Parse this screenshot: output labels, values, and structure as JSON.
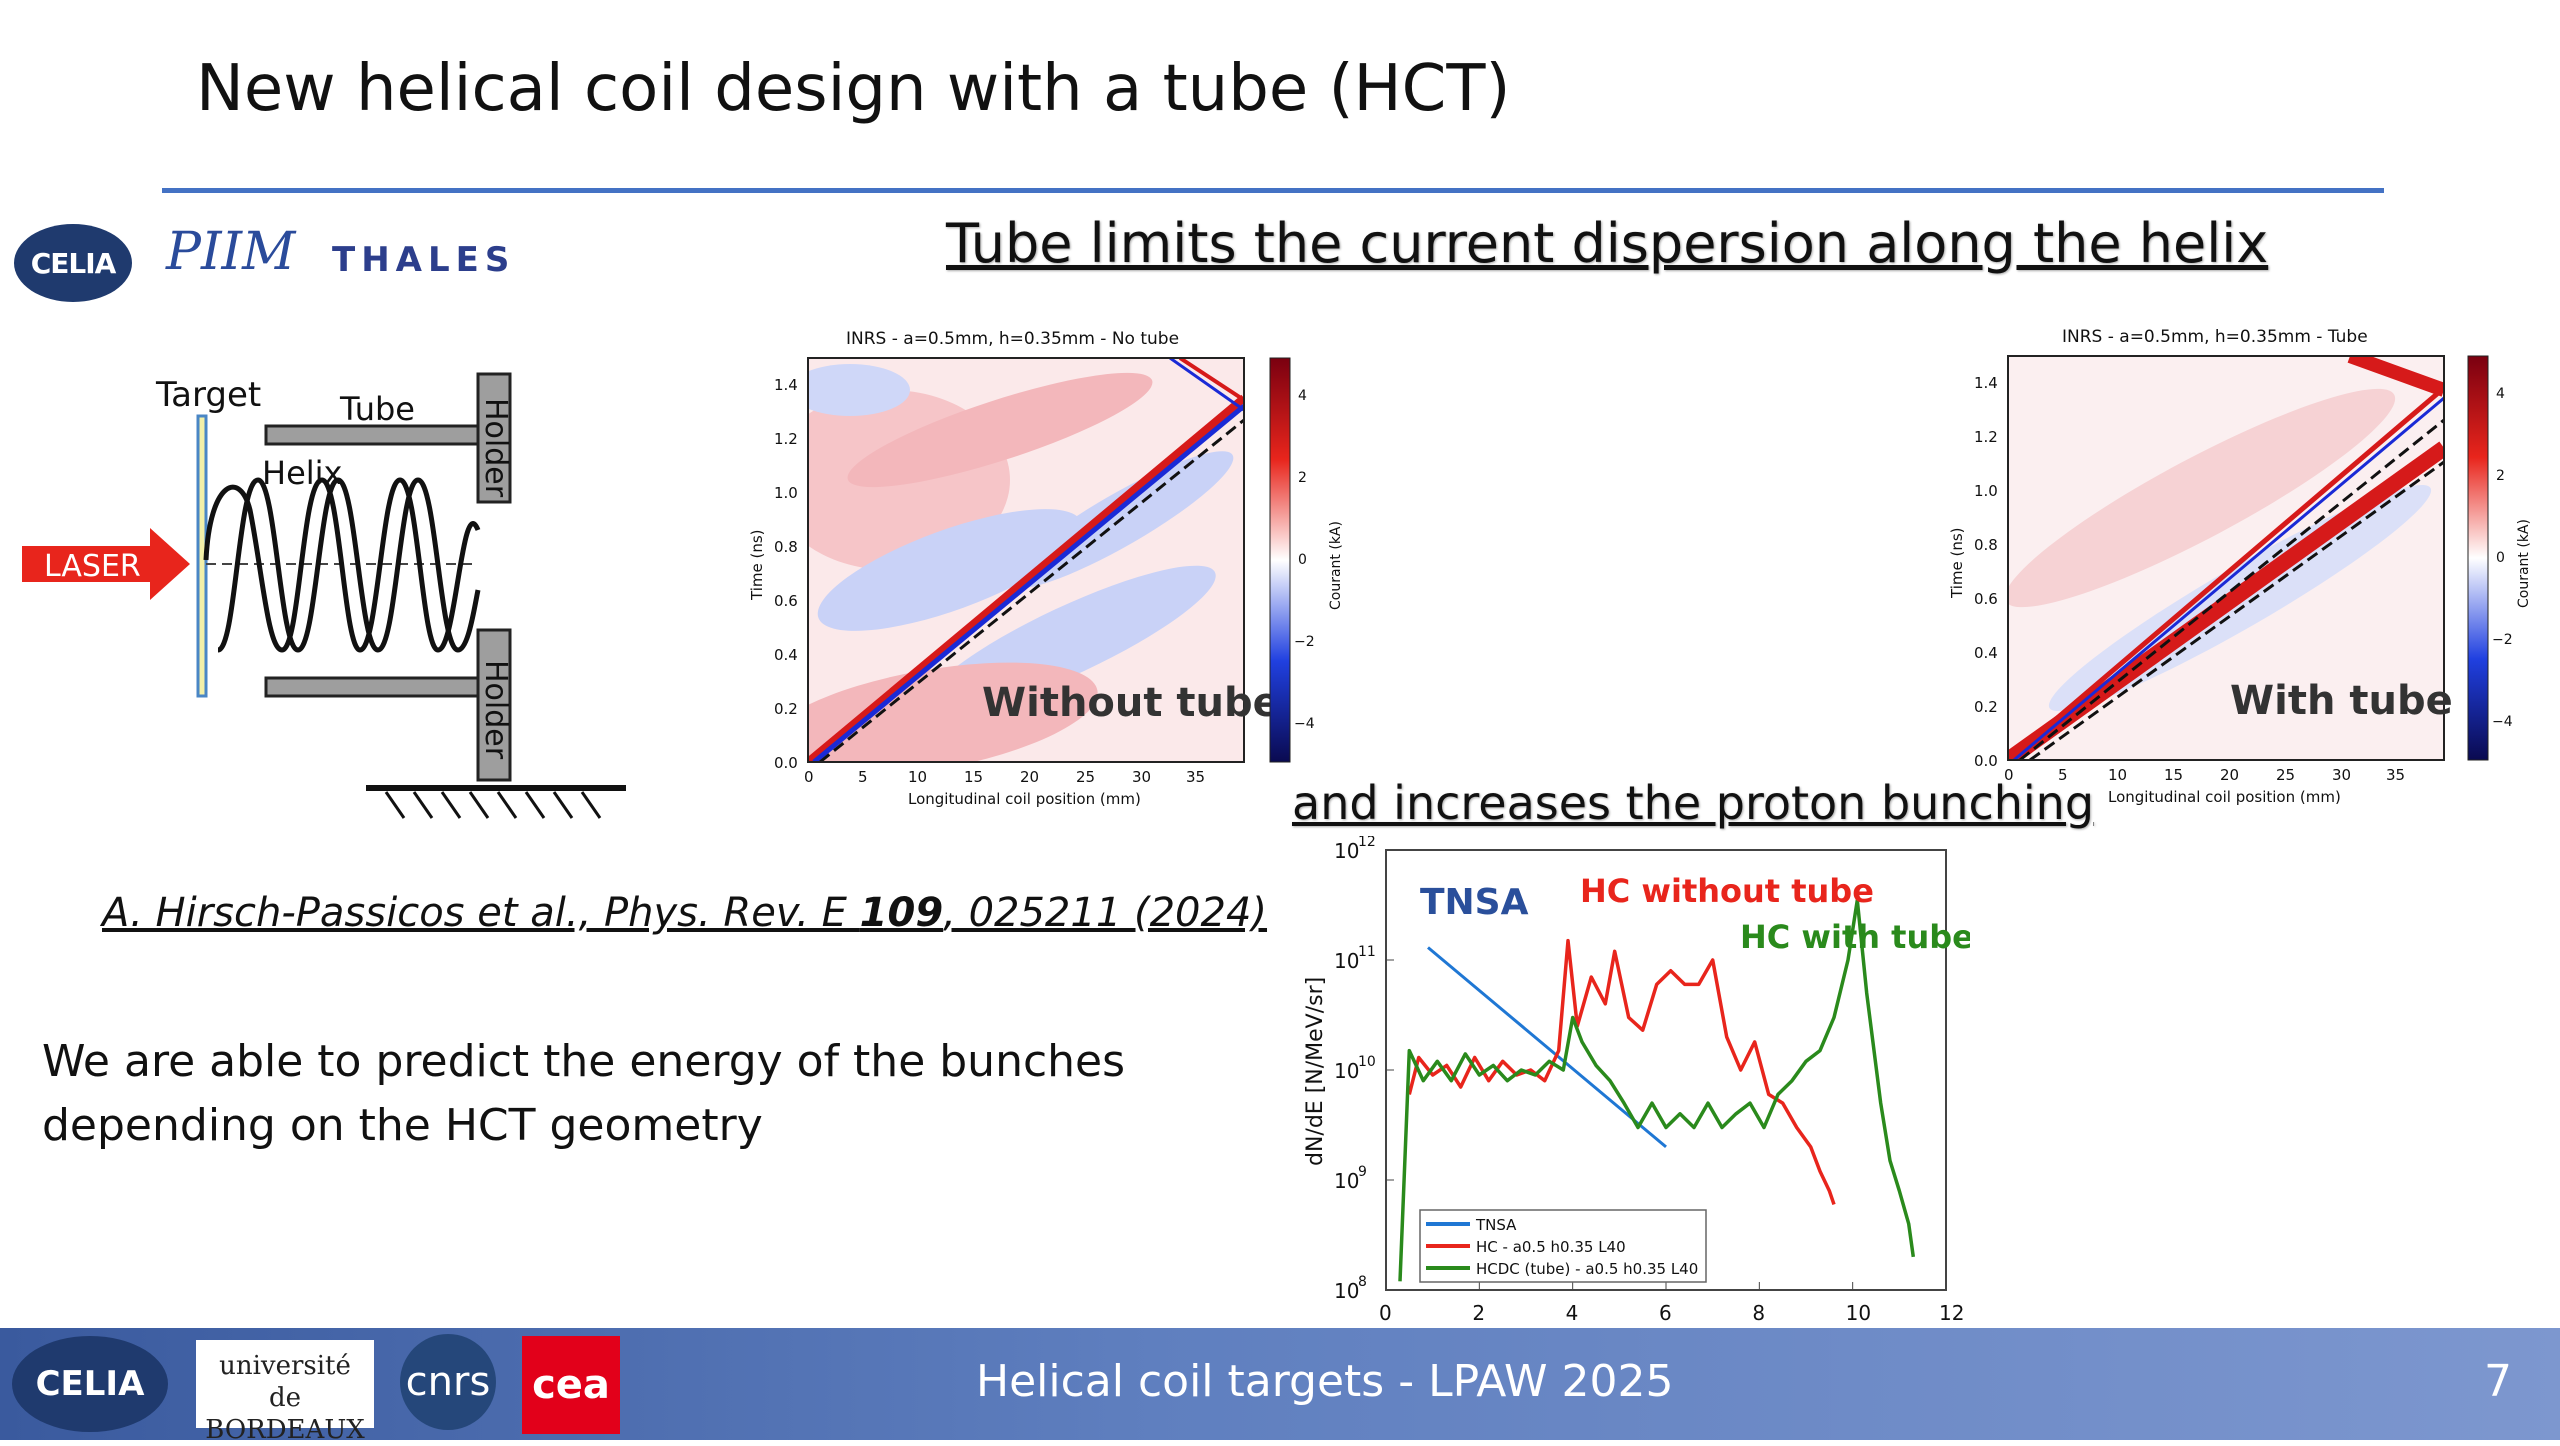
{
  "slide": {
    "title": "New helical coil design with a tube (HCT)",
    "heading_top": "Tube limits the current dispersion along the helix",
    "heading_bottom": "and increases the proton bunching",
    "citation_prefix": "A. Hirsch-Passicos et al., Phys. Rev. E ",
    "citation_volume": "109",
    "citation_suffix": ", 025211 (2024)",
    "body_line1": "We are able to predict the energy of the bunches",
    "body_line2": "depending on the HCT geometry"
  },
  "logos": {
    "celia": "CELIA",
    "pliim": "PIIM",
    "thales": "THALES"
  },
  "diagram": {
    "target": "Target",
    "tube": "Tube",
    "helix": "Helix",
    "laser": "LASER",
    "holder_top": "Holder",
    "holder_bottom": "Holder"
  },
  "map_left": {
    "title": "INRS - a=0.5mm, h=0.35mm - No tube",
    "overlay": "Without tube",
    "xlabel": "Longitudinal coil position (mm)",
    "ylabel": "Time (ns)",
    "cbar_label": "Courant (kA)",
    "xticks": [
      "0",
      "5",
      "10",
      "15",
      "20",
      "25",
      "30",
      "35"
    ],
    "yticks": [
      "0.0",
      "0.2",
      "0.4",
      "0.6",
      "0.8",
      "1.0",
      "1.2",
      "1.4"
    ],
    "cticks": [
      "4",
      "2",
      "0",
      "−2",
      "−4"
    ]
  },
  "map_right": {
    "title": "INRS - a=0.5mm, h=0.35mm - Tube",
    "overlay": "With tube",
    "xlabel": "Longitudinal coil position (mm)",
    "ylabel": "Time (ns)",
    "cbar_label": "Courant (kA)",
    "xticks": [
      "0",
      "5",
      "10",
      "15",
      "20",
      "25",
      "30",
      "35"
    ],
    "yticks": [
      "0.0",
      "0.2",
      "0.4",
      "0.6",
      "0.8",
      "1.0",
      "1.2",
      "1.4"
    ],
    "cticks": [
      "4",
      "2",
      "0",
      "−2",
      "−4"
    ]
  },
  "chart_data": {
    "type": "line",
    "ylabel": "dN/dE [N/MeV/sr]",
    "y_scale": "log",
    "xlim": [
      0,
      12
    ],
    "ylim": [
      100000000.0,
      1000000000000.0
    ],
    "xticks": [
      "0",
      "2",
      "4",
      "6",
      "8",
      "10",
      "12"
    ],
    "ytick_base": [
      "10",
      "10",
      "10",
      "10",
      "10"
    ],
    "ytick_exp": [
      "8",
      "9",
      "10",
      "11",
      "12"
    ],
    "annotations": {
      "tnsa": "TNSA",
      "hc_without": "HC without tube",
      "hc_with": "HC with tube"
    },
    "legend": [
      "TNSA",
      "HC - a0.5 h0.35 L40",
      "HCDC (tube) - a0.5 h0.35 L40"
    ],
    "legend_position": "bottom-left",
    "colors": {
      "tnsa": "#1f77d4",
      "hc": "#e8251c",
      "hcdc": "#2a8a1c"
    },
    "series": [
      {
        "name": "TNSA",
        "points": [
          [
            0.9,
            130000000000.0
          ],
          [
            6.0,
            2000000000.0
          ]
        ]
      },
      {
        "name": "HC - a0.5 h0.35 L40",
        "points": [
          [
            0.5,
            6000000000.0
          ],
          [
            0.7,
            13000000000.0
          ],
          [
            1.0,
            9000000000.0
          ],
          [
            1.3,
            11000000000.0
          ],
          [
            1.6,
            7000000000.0
          ],
          [
            1.9,
            13000000000.0
          ],
          [
            2.2,
            8000000000.0
          ],
          [
            2.5,
            12000000000.0
          ],
          [
            2.8,
            9000000000.0
          ],
          [
            3.1,
            10000000000.0
          ],
          [
            3.4,
            8000000000.0
          ],
          [
            3.7,
            15000000000.0
          ],
          [
            3.9,
            150000000000.0
          ],
          [
            4.1,
            25000000000.0
          ],
          [
            4.4,
            70000000000.0
          ],
          [
            4.7,
            40000000000.0
          ],
          [
            4.9,
            120000000000.0
          ],
          [
            5.2,
            30000000000.0
          ],
          [
            5.5,
            23000000000.0
          ],
          [
            5.8,
            60000000000.0
          ],
          [
            6.1,
            80000000000.0
          ],
          [
            6.4,
            60000000000.0
          ],
          [
            6.7,
            60000000000.0
          ],
          [
            7.0,
            100000000000.0
          ],
          [
            7.3,
            20000000000.0
          ],
          [
            7.6,
            10000000000.0
          ],
          [
            7.9,
            18000000000.0
          ],
          [
            8.2,
            6000000000.0
          ],
          [
            8.5,
            5000000000.0
          ],
          [
            8.8,
            3000000000.0
          ],
          [
            9.1,
            2000000000.0
          ],
          [
            9.3,
            1200000000.0
          ],
          [
            9.5,
            800000000.0
          ],
          [
            9.6,
            600000000.0
          ]
        ]
      },
      {
        "name": "HCDC (tube) - a0.5 h0.35 L40",
        "points": [
          [
            0.3,
            120000000.0
          ],
          [
            0.5,
            15000000000.0
          ],
          [
            0.8,
            8000000000.0
          ],
          [
            1.1,
            12000000000.0
          ],
          [
            1.4,
            8000000000.0
          ],
          [
            1.7,
            14000000000.0
          ],
          [
            2.0,
            9000000000.0
          ],
          [
            2.3,
            11000000000.0
          ],
          [
            2.6,
            8000000000.0
          ],
          [
            2.9,
            10000000000.0
          ],
          [
            3.2,
            9000000000.0
          ],
          [
            3.5,
            12000000000.0
          ],
          [
            3.8,
            10000000000.0
          ],
          [
            4.0,
            30000000000.0
          ],
          [
            4.2,
            18000000000.0
          ],
          [
            4.5,
            11000000000.0
          ],
          [
            4.8,
            8000000000.0
          ],
          [
            5.1,
            5000000000.0
          ],
          [
            5.4,
            3000000000.0
          ],
          [
            5.7,
            5000000000.0
          ],
          [
            6.0,
            3000000000.0
          ],
          [
            6.3,
            4000000000.0
          ],
          [
            6.6,
            3000000000.0
          ],
          [
            6.9,
            5000000000.0
          ],
          [
            7.2,
            3000000000.0
          ],
          [
            7.5,
            4000000000.0
          ],
          [
            7.8,
            5000000000.0
          ],
          [
            8.1,
            3000000000.0
          ],
          [
            8.4,
            6000000000.0
          ],
          [
            8.7,
            8000000000.0
          ],
          [
            9.0,
            12000000000.0
          ],
          [
            9.3,
            15000000000.0
          ],
          [
            9.6,
            30000000000.0
          ],
          [
            9.9,
            100000000000.0
          ],
          [
            10.1,
            350000000000.0
          ],
          [
            10.3,
            50000000000.0
          ],
          [
            10.6,
            5000000000.0
          ],
          [
            10.8,
            1500000000.0
          ],
          [
            11.0,
            800000000.0
          ],
          [
            11.2,
            400000000.0
          ],
          [
            11.3,
            200000000.0
          ]
        ]
      }
    ]
  },
  "footer": {
    "text": "Helical coil targets - LPAW 2025",
    "page": "7",
    "logo_celia": "CELIA",
    "logo_univ_line1": "université",
    "logo_univ_line2": "de BORDEAUX",
    "logo_cnrs": "cnrs",
    "logo_cea": "cea"
  }
}
